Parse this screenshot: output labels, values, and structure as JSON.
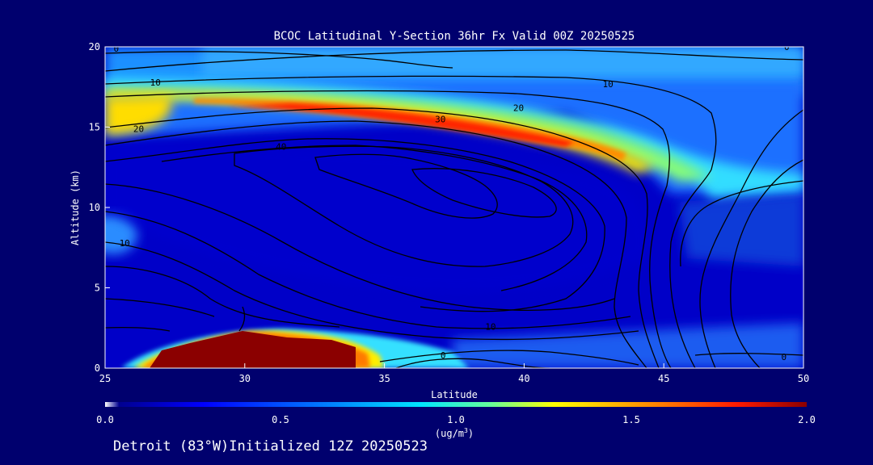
{
  "chart_data": {
    "type": "heatmap",
    "title": "BCOC Latitudinal Y-Section 36hr  Fx Valid 00Z 20250525",
    "xlabel": "Latitude",
    "ylabel": "Altitude (km)",
    "xlim": [
      25,
      50
    ],
    "ylim": [
      0,
      20
    ],
    "x_ticks": [
      25,
      30,
      35,
      40,
      45,
      50
    ],
    "y_ticks": [
      0,
      5,
      10,
      15,
      20
    ],
    "colorbar": {
      "min": 0.0,
      "max": 2.0,
      "ticks": [
        "0.0",
        "0.5",
        "1.0",
        "1.5",
        "2.0"
      ],
      "unit_prefix": "(ug/m",
      "unit_sup": "3",
      "unit_suffix": ")"
    },
    "grid": false,
    "contour_labels": [
      {
        "text": "0",
        "lat": 25.4,
        "alt": 19.9
      },
      {
        "text": "10",
        "lat": 26.8,
        "alt": 17.8
      },
      {
        "text": "10",
        "lat": 43.0,
        "alt": 17.7
      },
      {
        "text": "20",
        "lat": 39.8,
        "alt": 16.2
      },
      {
        "text": "20",
        "lat": 26.2,
        "alt": 14.9
      },
      {
        "text": "30",
        "lat": 37.0,
        "alt": 15.5
      },
      {
        "text": "40",
        "lat": 31.3,
        "alt": 13.8
      },
      {
        "text": "0",
        "lat": 49.4,
        "alt": 20.0
      },
      {
        "text": "0",
        "lat": 37.1,
        "alt": 0.8
      },
      {
        "text": "0",
        "lat": 49.3,
        "alt": 0.7
      },
      {
        "text": "10",
        "lat": 38.8,
        "alt": 2.6
      },
      {
        "text": "10",
        "lat": 25.7,
        "alt": 7.8
      }
    ]
  },
  "footer": {
    "text": "Detroit (83°W)Initialized 12Z 20250523"
  },
  "colors": {
    "background": "#00006e",
    "plot_base": "#0000c8",
    "max_fill": "#8b0000",
    "contour": "#000000"
  }
}
